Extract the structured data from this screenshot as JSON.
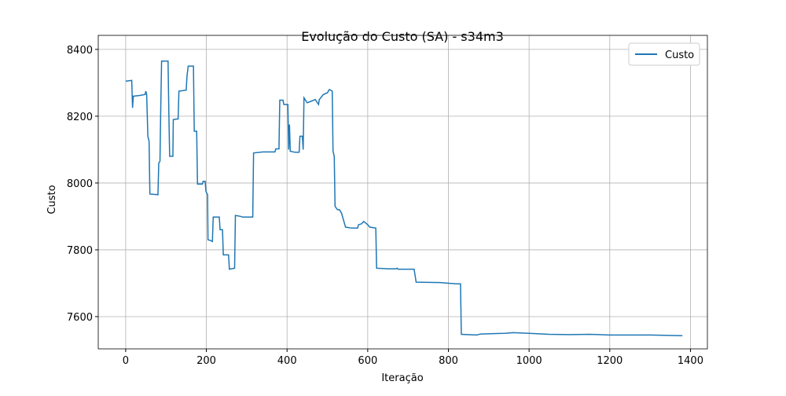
{
  "chart_data": {
    "type": "line",
    "title": "Evolução do Custo (SA) - s34m3",
    "x_label": "Iteração",
    "y_label": "Custo",
    "x": [
      0,
      15,
      17,
      19,
      35,
      48,
      50,
      52,
      55,
      58,
      60,
      80,
      82,
      85,
      87,
      89,
      105,
      107,
      109,
      117,
      118,
      130,
      132,
      150,
      152,
      155,
      168,
      170,
      176,
      178,
      190,
      192,
      197,
      199,
      203,
      204,
      210,
      215,
      217,
      232,
      234,
      240,
      242,
      255,
      257,
      270,
      272,
      285,
      290,
      315,
      317,
      340,
      370,
      372,
      380,
      382,
      390,
      392,
      402,
      404,
      406,
      408,
      420,
      430,
      432,
      438,
      440,
      442,
      450,
      460,
      470,
      478,
      480,
      490,
      500,
      505,
      512,
      514,
      517,
      519,
      525,
      530,
      535,
      545,
      560,
      575,
      577,
      585,
      590,
      600,
      605,
      620,
      622,
      650,
      670,
      673,
      675,
      715,
      720,
      780,
      800,
      820,
      830,
      832,
      870,
      880,
      940,
      960,
      1000,
      1050,
      1100,
      1150,
      1200,
      1260,
      1300,
      1380
    ],
    "series": [
      {
        "name": "Custo",
        "color": "#1f77b4",
        "values": [
          8305,
          8307,
          8225,
          8260,
          8262,
          8265,
          8275,
          8265,
          8140,
          8125,
          7967,
          7965,
          8060,
          8065,
          8230,
          8365,
          8365,
          8210,
          8080,
          8080,
          8190,
          8192,
          8275,
          8278,
          8320,
          8350,
          8350,
          8155,
          8155,
          7997,
          7997,
          8005,
          8005,
          7975,
          7965,
          7830,
          7828,
          7825,
          7898,
          7898,
          7860,
          7860,
          7785,
          7785,
          7742,
          7745,
          7903,
          7900,
          7898,
          7898,
          8090,
          8093,
          8093,
          8102,
          8102,
          8248,
          8248,
          8235,
          8235,
          8100,
          8175,
          8095,
          8092,
          8092,
          8140,
          8140,
          8100,
          8255,
          8240,
          8245,
          8250,
          8235,
          8250,
          8265,
          8270,
          8280,
          8275,
          8095,
          8080,
          7930,
          7920,
          7920,
          7910,
          7868,
          7865,
          7865,
          7875,
          7878,
          7885,
          7875,
          7868,
          7865,
          7745,
          7743,
          7743,
          7745,
          7742,
          7742,
          7703,
          7702,
          7700,
          7698,
          7698,
          7547,
          7545,
          7548,
          7550,
          7552,
          7550,
          7547,
          7546,
          7547,
          7545,
          7545,
          7545,
          7543
        ]
      }
    ],
    "xlim": [
      -68,
      1442
    ],
    "ylim": [
      7503.5,
      8442
    ],
    "xticks": [
      0,
      200,
      400,
      600,
      800,
      1000,
      1200,
      1400
    ],
    "yticks": [
      7600,
      7800,
      8000,
      8200,
      8400
    ],
    "grid": true,
    "legend": "upper right"
  }
}
